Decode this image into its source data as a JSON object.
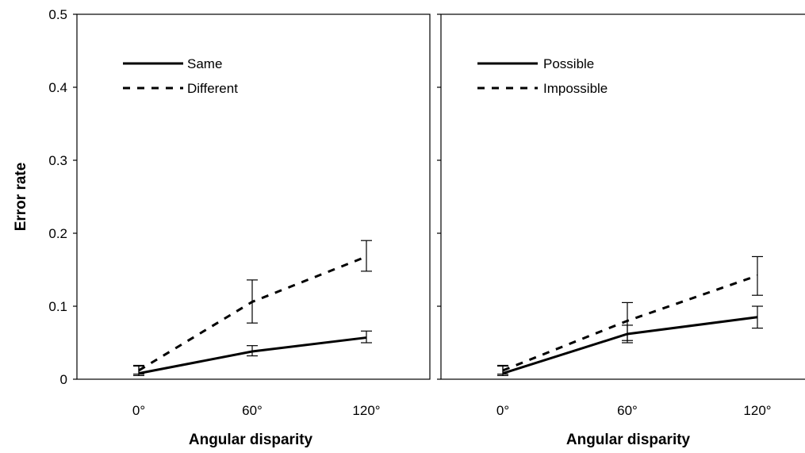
{
  "chart_data": [
    {
      "type": "line",
      "title": "",
      "xlabel": "Angular disparity",
      "ylabel": "Error rate",
      "categories": [
        "0°",
        "60°",
        "120°"
      ],
      "ylim": [
        0,
        0.5
      ],
      "yticks": [
        "0",
        "0.1",
        "0.2",
        "0.3",
        "0.4",
        "0.5"
      ],
      "legend_position": "top-left",
      "grid": false,
      "series": [
        {
          "name": "Same",
          "style": "solid",
          "values": [
            0.008,
            0.038,
            0.057
          ],
          "err_low": [
            0.005,
            0.032,
            0.05
          ],
          "err_high": [
            0.018,
            0.046,
            0.066
          ]
        },
        {
          "name": "Different",
          "style": "dashed",
          "values": [
            0.012,
            0.106,
            0.168
          ],
          "err_low": [
            0.007,
            0.077,
            0.148
          ],
          "err_high": [
            0.019,
            0.136,
            0.19
          ]
        }
      ]
    },
    {
      "type": "line",
      "title": "",
      "xlabel": "Angular disparity",
      "ylabel": "",
      "categories": [
        "0°",
        "60°",
        "120°"
      ],
      "ylim": [
        0,
        0.5
      ],
      "legend_position": "top-left",
      "grid": false,
      "series": [
        {
          "name": "Possible",
          "style": "solid",
          "values": [
            0.008,
            0.062,
            0.085
          ],
          "err_low": [
            0.005,
            0.05,
            0.07
          ],
          "err_high": [
            0.018,
            0.074,
            0.1
          ]
        },
        {
          "name": "Impossible",
          "style": "dashed",
          "values": [
            0.012,
            0.08,
            0.142
          ],
          "err_low": [
            0.007,
            0.053,
            0.115
          ],
          "err_high": [
            0.019,
            0.105,
            0.168
          ]
        }
      ]
    }
  ]
}
